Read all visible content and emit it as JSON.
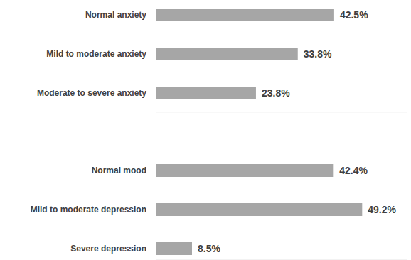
{
  "chart_data": [
    {
      "type": "bar",
      "orientation": "horizontal",
      "categories": [
        "Normal anxiety",
        "Mild to moderate anxiety",
        "Moderate to severe anxiety"
      ],
      "values": [
        42.5,
        33.8,
        23.8
      ],
      "value_labels": [
        "42.5%",
        "33.8%",
        "23.8%"
      ],
      "color": "#a6a6a6",
      "xlim": [
        0,
        60
      ],
      "data_labels": true,
      "tick_labels": "y",
      "grid": false
    },
    {
      "type": "bar",
      "orientation": "horizontal",
      "categories": [
        "Normal mood",
        "Mild to moderate depression",
        "Severe depression"
      ],
      "values": [
        42.4,
        49.2,
        8.5
      ],
      "value_labels": [
        "42.4%",
        "49.2%",
        "8.5%"
      ],
      "color": "#a6a6a6",
      "xlim": [
        0,
        60
      ],
      "data_labels": true,
      "tick_labels": "y",
      "grid": false
    }
  ]
}
